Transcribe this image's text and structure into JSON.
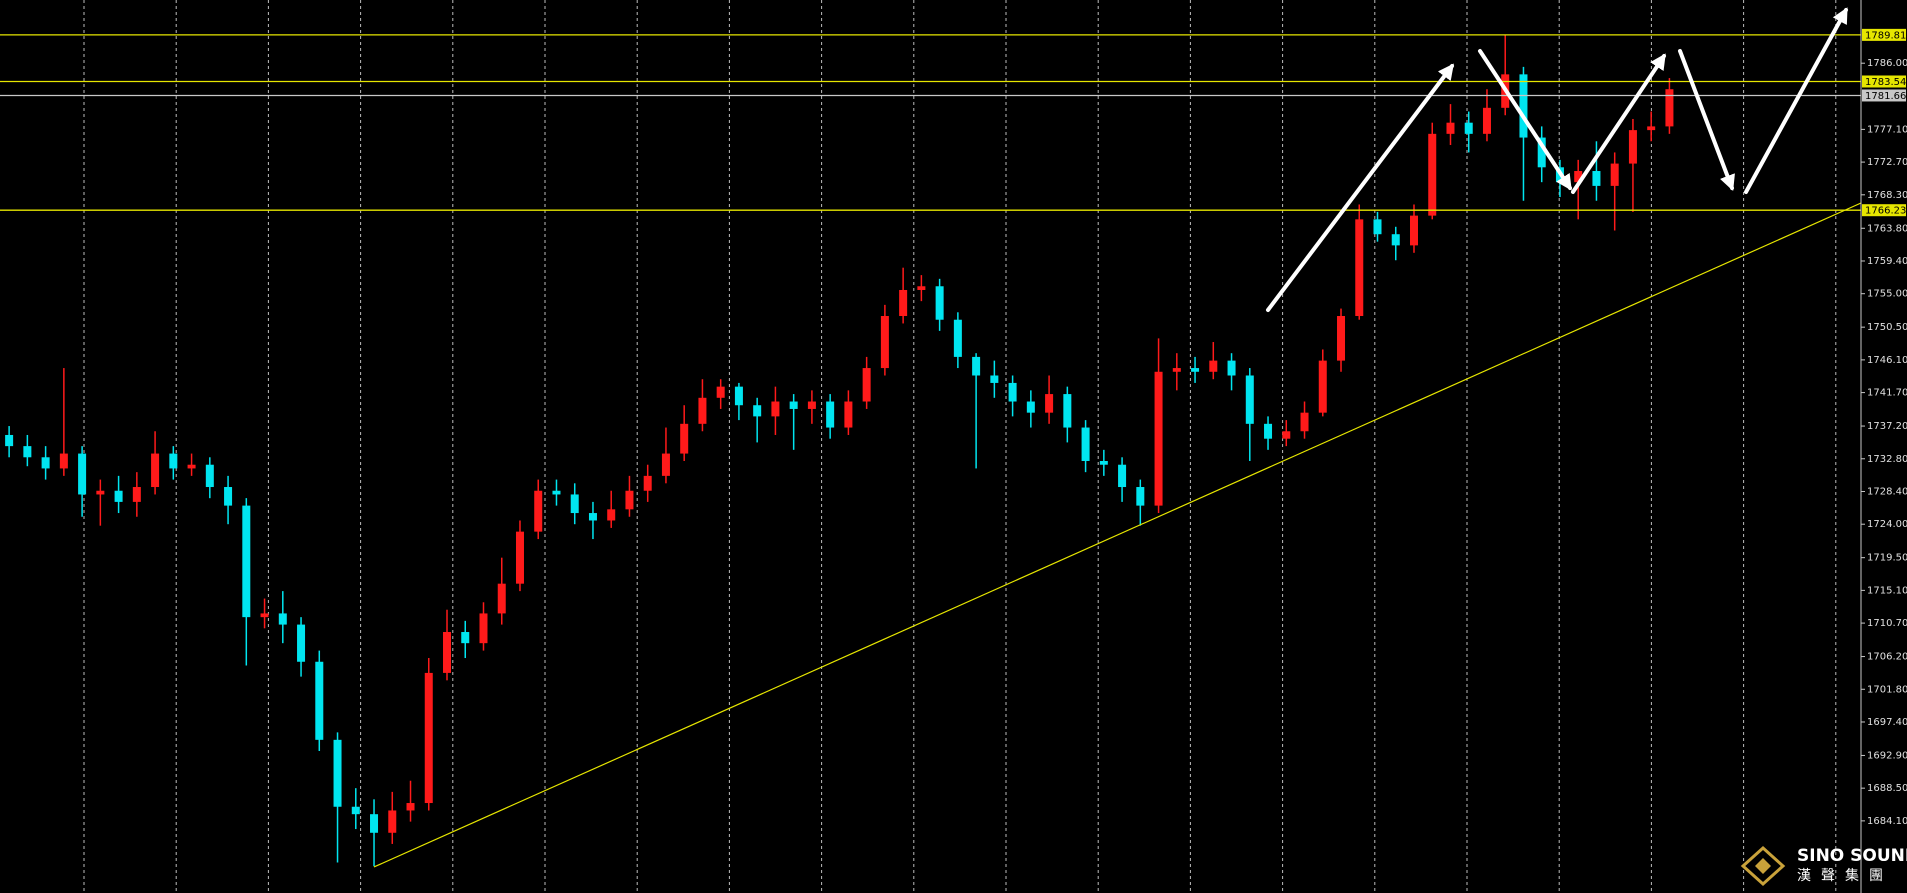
{
  "chart_data": {
    "type": "candlestick",
    "up_color": "#ff1a1a",
    "down_color": "#00e5f0",
    "open": [
      1736.0,
      1734.5,
      1733.0,
      1731.5,
      1733.5,
      1728.0,
      1728.5,
      1727.0,
      1729.0,
      1733.5,
      1731.5,
      1732.0,
      1729.0,
      1726.5,
      1711.5,
      1712.0,
      1710.5,
      1705.5,
      1695.0,
      1686.0,
      1685.0,
      1682.5,
      1685.5,
      1686.5,
      1704.0,
      1709.5,
      1708.0,
      1712.0,
      1716.0,
      1723.0,
      1728.5,
      1728.0,
      1725.5,
      1724.5,
      1726.0,
      1728.5,
      1730.5,
      1733.5,
      1737.5,
      1741.0,
      1742.5,
      1740.0,
      1738.5,
      1740.5,
      1739.5,
      1740.5,
      1737.0,
      1740.5,
      1745.0,
      1752.0,
      1755.5,
      1756.0,
      1751.5,
      1746.5,
      1744.0,
      1743.0,
      1740.5,
      1739.0,
      1741.5,
      1737.0,
      1732.5,
      1732.0,
      1729.0,
      1726.5,
      1744.5,
      1745.0,
      1744.5,
      1746.0,
      1744.0,
      1737.5,
      1735.5,
      1736.5,
      1739.0,
      1746.0,
      1752.0,
      1765.0,
      1763.0,
      1761.5,
      1765.5,
      1776.5,
      1778.0,
      1776.5,
      1780.0,
      1784.5,
      1776.0,
      1772.0,
      1770.0,
      1771.5,
      1769.5,
      1772.5,
      1777.0,
      1777.5
    ],
    "high": [
      1737.2,
      1736.0,
      1734.5,
      1745.0,
      1734.5,
      1730.0,
      1730.5,
      1731.0,
      1736.5,
      1734.5,
      1733.5,
      1733.0,
      1730.5,
      1727.5,
      1714.0,
      1715.0,
      1711.5,
      1707.0,
      1696.0,
      1688.5,
      1687.0,
      1688.0,
      1689.5,
      1706.0,
      1712.5,
      1711.0,
      1713.5,
      1719.5,
      1724.5,
      1730.0,
      1730.0,
      1729.5,
      1727.0,
      1728.5,
      1730.5,
      1732.0,
      1737.0,
      1740.0,
      1743.5,
      1743.5,
      1743.0,
      1741.0,
      1742.5,
      1741.5,
      1742.0,
      1741.5,
      1742.0,
      1746.5,
      1753.5,
      1758.5,
      1757.5,
      1757.0,
      1752.5,
      1747.0,
      1746.0,
      1744.0,
      1742.0,
      1744.0,
      1742.5,
      1738.0,
      1734.0,
      1733.0,
      1730.0,
      1749.0,
      1747.0,
      1746.5,
      1748.5,
      1747.0,
      1745.0,
      1738.5,
      1738.0,
      1740.5,
      1747.5,
      1753.0,
      1767.0,
      1766.0,
      1764.0,
      1767.0,
      1778.0,
      1780.5,
      1779.5,
      1782.5,
      1789.8,
      1785.5,
      1777.5,
      1773.0,
      1773.0,
      1775.5,
      1774.0,
      1778.5,
      1779.5,
      1784.0
    ],
    "low": [
      1733.0,
      1731.8,
      1730.0,
      1730.5,
      1725.0,
      1723.8,
      1725.5,
      1725.0,
      1728.0,
      1730.0,
      1730.5,
      1727.5,
      1724.0,
      1705.0,
      1710.0,
      1708.0,
      1703.5,
      1693.5,
      1678.5,
      1683.0,
      1678.0,
      1681.0,
      1684.0,
      1685.5,
      1703.0,
      1706.0,
      1707.0,
      1710.5,
      1715.0,
      1722.0,
      1726.5,
      1724.0,
      1722.0,
      1723.5,
      1725.0,
      1727.0,
      1729.5,
      1732.5,
      1736.5,
      1739.5,
      1738.0,
      1735.0,
      1736.0,
      1734.0,
      1737.5,
      1735.5,
      1736.0,
      1739.5,
      1744.0,
      1751.0,
      1754.0,
      1750.0,
      1745.0,
      1731.5,
      1741.0,
      1738.5,
      1737.0,
      1737.5,
      1735.0,
      1731.0,
      1730.5,
      1727.0,
      1723.8,
      1725.5,
      1742.0,
      1743.0,
      1743.5,
      1742.0,
      1732.5,
      1734.0,
      1734.5,
      1735.5,
      1738.5,
      1744.5,
      1751.5,
      1762.0,
      1759.5,
      1760.5,
      1765.0,
      1775.0,
      1774.0,
      1775.5,
      1779.0,
      1767.5,
      1770.0,
      1768.0,
      1765.0,
      1767.5,
      1763.5,
      1766.0,
      1775.5,
      1776.5
    ],
    "close": [
      1734.5,
      1733.0,
      1731.5,
      1733.5,
      1728.0,
      1728.5,
      1727.0,
      1729.0,
      1733.5,
      1731.5,
      1732.0,
      1729.0,
      1726.5,
      1711.5,
      1712.0,
      1710.5,
      1705.5,
      1695.0,
      1686.0,
      1685.0,
      1682.5,
      1685.5,
      1686.5,
      1704.0,
      1709.5,
      1708.0,
      1712.0,
      1716.0,
      1723.0,
      1728.5,
      1728.0,
      1725.5,
      1724.5,
      1726.0,
      1728.5,
      1730.5,
      1733.5,
      1737.5,
      1741.0,
      1742.5,
      1740.0,
      1738.5,
      1740.5,
      1739.5,
      1740.5,
      1737.0,
      1740.5,
      1745.0,
      1752.0,
      1755.5,
      1756.0,
      1751.5,
      1746.5,
      1744.0,
      1743.0,
      1740.5,
      1739.0,
      1741.5,
      1737.0,
      1732.5,
      1732.0,
      1729.0,
      1726.5,
      1744.5,
      1745.0,
      1744.5,
      1746.0,
      1744.0,
      1737.5,
      1735.5,
      1736.5,
      1739.0,
      1746.0,
      1752.0,
      1765.0,
      1763.0,
      1761.5,
      1765.5,
      1776.5,
      1778.0,
      1776.5,
      1780.0,
      1784.5,
      1776.0,
      1772.0,
      1770.0,
      1771.5,
      1769.5,
      1772.5,
      1777.0,
      1777.5,
      1782.5
    ],
    "xlim": [
      -0.5,
      101.5
    ],
    "ylim": [
      1674.4,
      1794.5
    ],
    "yticks": [
      {
        "value": 1786.0,
        "label": "1786.00"
      },
      {
        "value": 1777.1,
        "label": "1777.10"
      },
      {
        "value": 1772.7,
        "label": "1772.70"
      },
      {
        "value": 1768.3,
        "label": "1768.30"
      },
      {
        "value": 1763.8,
        "label": "1763.80"
      },
      {
        "value": 1759.4,
        "label": "1759.40"
      },
      {
        "value": 1755.0,
        "label": "1755.00"
      },
      {
        "value": 1750.5,
        "label": "1750.50"
      },
      {
        "value": 1746.1,
        "label": "1746.10"
      },
      {
        "value": 1741.7,
        "label": "1741.70"
      },
      {
        "value": 1737.2,
        "label": "1737.20"
      },
      {
        "value": 1732.8,
        "label": "1732.80"
      },
      {
        "value": 1728.4,
        "label": "1728.40"
      },
      {
        "value": 1724.0,
        "label": "1724.00"
      },
      {
        "value": 1719.5,
        "label": "1719.50"
      },
      {
        "value": 1715.1,
        "label": "1715.10"
      },
      {
        "value": 1710.7,
        "label": "1710.70"
      },
      {
        "value": 1706.2,
        "label": "1706.20"
      },
      {
        "value": 1701.8,
        "label": "1701.80"
      },
      {
        "value": 1697.4,
        "label": "1697.40"
      },
      {
        "value": 1692.9,
        "label": "1692.90"
      },
      {
        "value": 1688.5,
        "label": "1688.50"
      },
      {
        "value": 1684.1,
        "label": "1684.10"
      }
    ],
    "levels": [
      {
        "value": 1789.81,
        "color": "#e6e600"
      },
      {
        "value": 1783.54,
        "color": "#e6e600"
      },
      {
        "value": 1781.66,
        "color": "#c8c8c8"
      },
      {
        "value": 1766.23,
        "color": "#e6e600"
      }
    ],
    "trendline": {
      "x": [
        20,
        101.5
      ],
      "y": [
        1677.9,
        1767.2
      ],
      "color": "#e6e600"
    },
    "watermark": {
      "brand": "SINO SOUND",
      "chinese": "漢聲集團"
    }
  }
}
